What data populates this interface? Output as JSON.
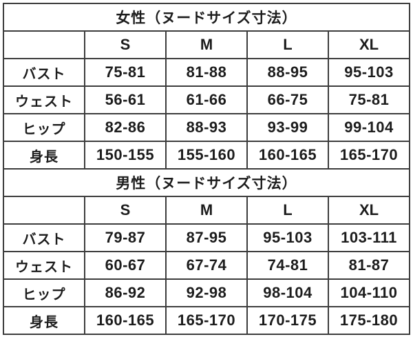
{
  "colors": {
    "background": "#ffffff",
    "border": "#3c3c3c",
    "text": "#1c1c1c"
  },
  "chart_data": [
    {
      "type": "table",
      "title": "女性（ヌードサイズ寸法）",
      "columns": [
        "",
        "S",
        "M",
        "L",
        "XL"
      ],
      "rows": [
        [
          "バスト",
          "75-81",
          "81-88",
          "88-95",
          "95-103"
        ],
        [
          "ウェスト",
          "56-61",
          "61-66",
          "66-75",
          "75-81"
        ],
        [
          "ヒップ",
          "82-86",
          "88-93",
          "93-99",
          "99-104"
        ],
        [
          "身長",
          "150-155",
          "155-160",
          "160-165",
          "165-170"
        ]
      ]
    },
    {
      "type": "table",
      "title": "男性（ヌードサイズ寸法）",
      "columns": [
        "",
        "S",
        "M",
        "L",
        "XL"
      ],
      "rows": [
        [
          "バスト",
          "79-87",
          "87-95",
          "95-103",
          "103-111"
        ],
        [
          "ウェスト",
          "60-67",
          "67-74",
          "74-81",
          "81-87"
        ],
        [
          "ヒップ",
          "86-92",
          "92-98",
          "98-104",
          "104-110"
        ],
        [
          "身長",
          "160-165",
          "165-170",
          "170-175",
          "175-180"
        ]
      ]
    }
  ]
}
